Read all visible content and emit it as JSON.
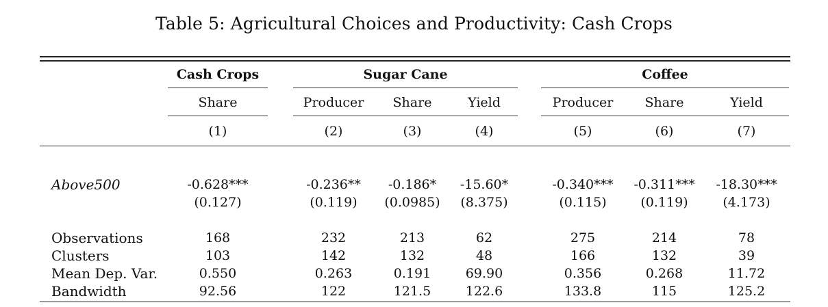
{
  "table": {
    "caption": "Table 5: Agricultural Choices and Productivity: Cash Crops",
    "groups": [
      {
        "label": "Cash Crops"
      },
      {
        "label": "Sugar Cane"
      },
      {
        "label": "Coffee"
      }
    ],
    "subheaders": [
      "Share",
      "Producer",
      "Share",
      "Yield",
      "Producer",
      "Share",
      "Yield"
    ],
    "col_numbers": [
      "(1)",
      "(2)",
      "(3)",
      "(4)",
      "(5)",
      "(6)",
      "(7)"
    ],
    "above": {
      "label": "Above500",
      "coefs": [
        "-0.628***",
        "-0.236**",
        "-0.186*",
        "-15.60*",
        "-0.340***",
        "-0.311***",
        "-18.30***"
      ],
      "ses": [
        "(0.127)",
        "(0.119)",
        "(0.0985)",
        "(8.375)",
        "(0.115)",
        "(0.119)",
        "(4.173)"
      ]
    },
    "stats": [
      {
        "label": "Observations",
        "values": [
          "168",
          "232",
          "213",
          "62",
          "275",
          "214",
          "78"
        ]
      },
      {
        "label": "Clusters",
        "values": [
          "103",
          "142",
          "132",
          "48",
          "166",
          "132",
          "39"
        ]
      },
      {
        "label": "Mean Dep. Var.",
        "values": [
          "0.550",
          "0.263",
          "0.191",
          "69.90",
          "0.356",
          "0.268",
          "11.72"
        ]
      },
      {
        "label": "Bandwidth",
        "values": [
          "92.56",
          "122",
          "121.5",
          "122.6",
          "133.8",
          "115",
          "125.2"
        ]
      }
    ]
  }
}
